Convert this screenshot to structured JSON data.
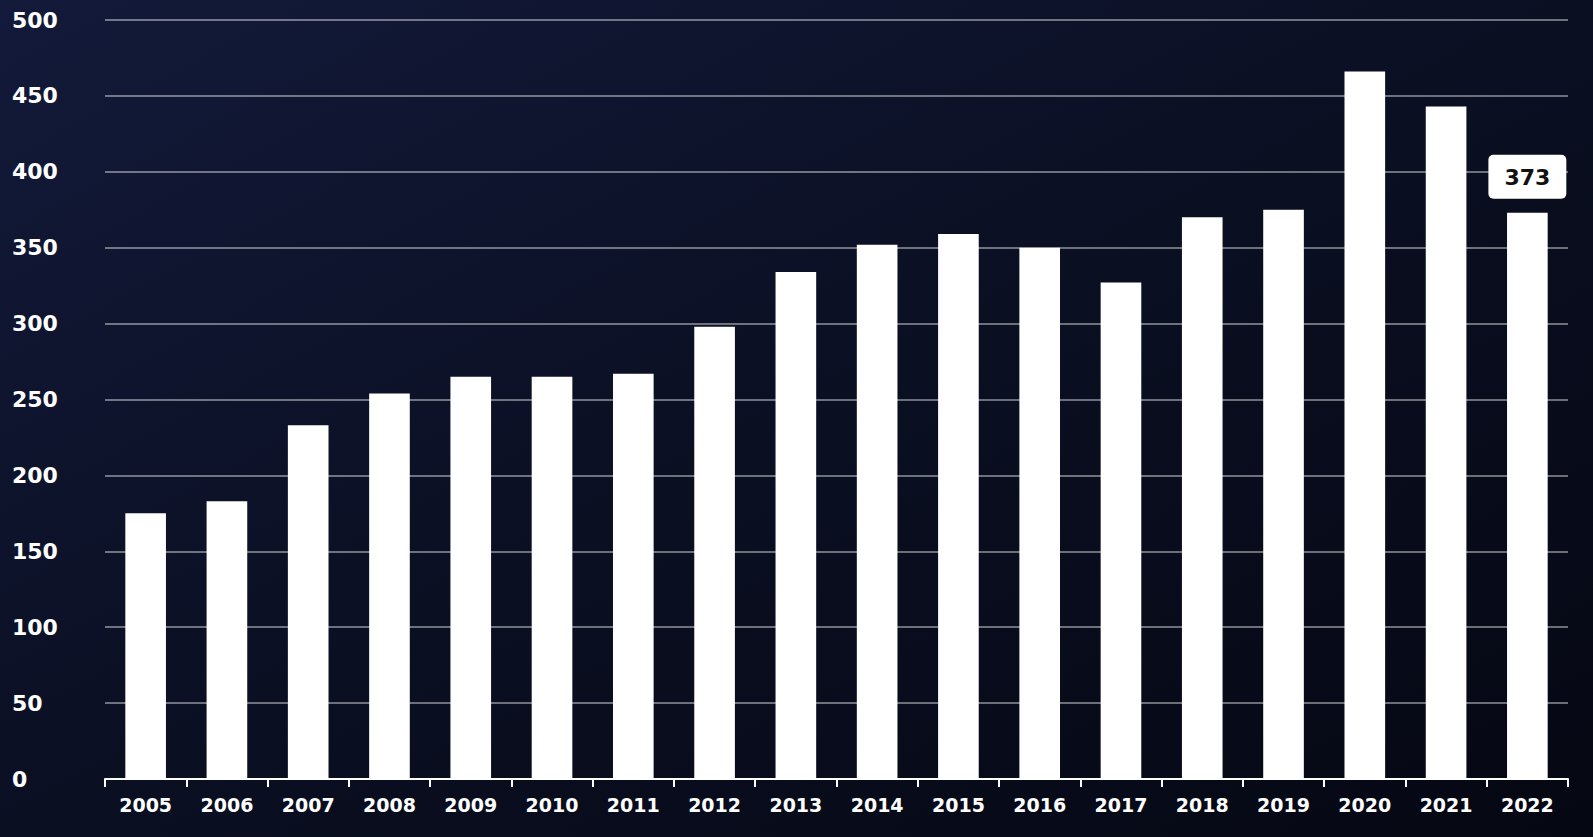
{
  "chart_data": {
    "type": "bar",
    "categories": [
      "2005",
      "2006",
      "2007",
      "2008",
      "2009",
      "2010",
      "2011",
      "2012",
      "2013",
      "2014",
      "2015",
      "2016",
      "2017",
      "2018",
      "2019",
      "2020",
      "2021",
      "2022"
    ],
    "values": [
      175,
      183,
      233,
      254,
      265,
      265,
      267,
      298,
      334,
      352,
      359,
      350,
      327,
      370,
      375,
      466,
      443,
      373
    ],
    "color": "#ffffff",
    "ylim": [
      0,
      500
    ],
    "yticks": [
      0,
      50,
      100,
      150,
      200,
      250,
      300,
      350,
      400,
      450,
      500
    ],
    "grid": true,
    "annotations": [
      {
        "category": "2022",
        "text": "373"
      }
    ]
  }
}
